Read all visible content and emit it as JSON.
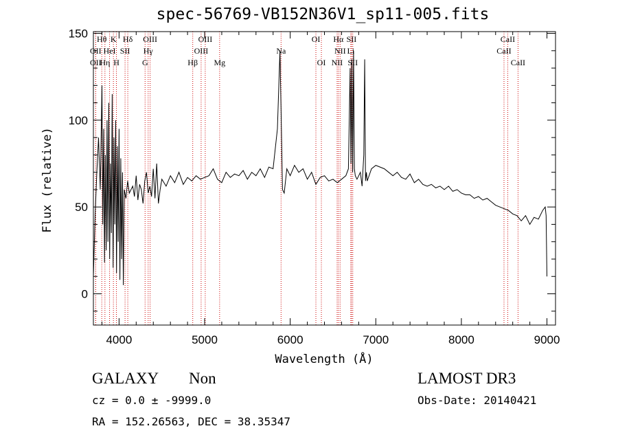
{
  "chart_data": {
    "type": "line",
    "title": "spec-56769-VB152N36V1_sp11-005.fits",
    "xlabel": "Wavelength (Å)",
    "ylabel": "Flux (relative)",
    "xlim": [
      3700,
      9100
    ],
    "ylim": [
      -18,
      151
    ],
    "xticks": [
      4000,
      5000,
      6000,
      7000,
      8000,
      9000
    ],
    "yticks": [
      0,
      50,
      100,
      150
    ],
    "series": [
      {
        "name": "flux",
        "x": [
          3700,
          3720,
          3740,
          3760,
          3780,
          3800,
          3810,
          3820,
          3830,
          3840,
          3850,
          3860,
          3870,
          3880,
          3890,
          3900,
          3910,
          3920,
          3930,
          3940,
          3950,
          3960,
          3970,
          3980,
          3990,
          4000,
          4010,
          4020,
          4030,
          4040,
          4050,
          4060,
          4080,
          4100,
          4120,
          4140,
          4160,
          4180,
          4200,
          4220,
          4240,
          4260,
          4280,
          4300,
          4320,
          4340,
          4360,
          4380,
          4400,
          4420,
          4440,
          4460,
          4480,
          4500,
          4550,
          4600,
          4650,
          4700,
          4750,
          4800,
          4850,
          4900,
          4950,
          5000,
          5050,
          5100,
          5150,
          5200,
          5250,
          5300,
          5350,
          5400,
          5450,
          5500,
          5550,
          5600,
          5650,
          5700,
          5750,
          5800,
          5850,
          5880,
          5895,
          5910,
          5930,
          5960,
          6000,
          6050,
          6100,
          6150,
          6200,
          6250,
          6300,
          6350,
          6400,
          6450,
          6500,
          6550,
          6600,
          6650,
          6680,
          6700,
          6710,
          6720,
          6730,
          6740,
          6750,
          6760,
          6780,
          6800,
          6820,
          6840,
          6860,
          6870,
          6880,
          6890,
          6900,
          6950,
          7000,
          7050,
          7100,
          7150,
          7200,
          7250,
          7300,
          7350,
          7400,
          7450,
          7500,
          7550,
          7600,
          7650,
          7700,
          7750,
          7800,
          7850,
          7900,
          7950,
          8000,
          8050,
          8100,
          8150,
          8200,
          8250,
          8300,
          8350,
          8400,
          8450,
          8500,
          8550,
          8600,
          8650,
          8700,
          8750,
          8800,
          8850,
          8900,
          8950,
          8980,
          8990,
          9000
        ],
        "y": [
          10,
          45,
          70,
          90,
          60,
          120,
          40,
          95,
          18,
          80,
          25,
          100,
          30,
          110,
          20,
          75,
          35,
          115,
          15,
          90,
          40,
          100,
          12,
          85,
          30,
          95,
          8,
          78,
          20,
          70,
          5,
          60,
          55,
          65,
          58,
          60,
          62,
          56,
          68,
          54,
          63,
          60,
          52,
          65,
          70,
          58,
          62,
          56,
          72,
          55,
          75,
          52,
          60,
          66,
          62,
          68,
          64,
          70,
          63,
          67,
          65,
          68,
          66,
          67,
          68,
          72,
          66,
          64,
          70,
          67,
          69,
          68,
          71,
          66,
          70,
          68,
          72,
          67,
          73,
          72,
          95,
          140,
          100,
          60,
          58,
          72,
          68,
          74,
          70,
          72,
          66,
          70,
          63,
          67,
          68,
          65,
          66,
          64,
          66,
          68,
          72,
          130,
          75,
          135,
          70,
          140,
          72,
          68,
          66,
          68,
          70,
          62,
          80,
          135,
          65,
          70,
          65,
          72,
          74,
          73,
          72,
          70,
          68,
          70,
          67,
          66,
          69,
          64,
          66,
          63,
          62,
          63,
          61,
          62,
          60,
          62,
          59,
          60,
          58,
          57,
          57,
          55,
          56,
          54,
          55,
          53,
          51,
          50,
          49,
          48,
          46,
          45,
          42,
          45,
          40,
          44,
          43,
          48,
          50,
          45,
          10
        ]
      }
    ],
    "lines": [
      {
        "label": "OII",
        "x": 3727,
        "row": 1
      },
      {
        "label": "OII",
        "x": 3727,
        "row": 2
      },
      {
        "label": "Hθ",
        "x": 3798,
        "row": 0
      },
      {
        "label": "Hη",
        "x": 3835,
        "row": 2
      },
      {
        "label": "HeI",
        "x": 3889,
        "row": 1
      },
      {
        "label": "K",
        "x": 3934,
        "row": 0
      },
      {
        "label": "H",
        "x": 3969,
        "row": 2
      },
      {
        "label": "SII",
        "x": 4070,
        "row": 1
      },
      {
        "label": "Hδ",
        "x": 4102,
        "row": 0
      },
      {
        "label": "G",
        "x": 4304,
        "row": 2
      },
      {
        "label": "Hγ",
        "x": 4340,
        "row": 1
      },
      {
        "label": "OIII",
        "x": 4363,
        "row": 0
      },
      {
        "label": "Hβ",
        "x": 4861,
        "row": 2
      },
      {
        "label": "OIII",
        "x": 4959,
        "row": 1
      },
      {
        "label": "OIII",
        "x": 5007,
        "row": 0
      },
      {
        "label": "Mg",
        "x": 5175,
        "row": 2
      },
      {
        "label": "Na",
        "x": 5893,
        "row": 1
      },
      {
        "label": "OI",
        "x": 6300,
        "row": 0
      },
      {
        "label": "OI",
        "x": 6364,
        "row": 2
      },
      {
        "label": "NII",
        "x": 6548,
        "row": 2
      },
      {
        "label": "Hα",
        "x": 6563,
        "row": 0
      },
      {
        "label": "NII",
        "x": 6583,
        "row": 1
      },
      {
        "label": "Li",
        "x": 6708,
        "row": 1
      },
      {
        "label": "SII",
        "x": 6716,
        "row": 0
      },
      {
        "label": "SII",
        "x": 6731,
        "row": 2
      },
      {
        "label": "CaII",
        "x": 8498,
        "row": 1
      },
      {
        "label": "CaII",
        "x": 8542,
        "row": 0
      },
      {
        "label": "CaII",
        "x": 8662,
        "row": 2
      }
    ]
  },
  "info": {
    "class": "GALAXY",
    "subclass": "Non",
    "survey": "LAMOST DR3",
    "cz": "cz = 0.0 ± -9999.0",
    "obs_date": "Obs-Date: 20140421",
    "radec": "RA = 152.26563, DEC =  38.35347"
  },
  "colors": {
    "spectrum": "#000000",
    "line_markers": "#cc0000",
    "axes": "#000000"
  }
}
